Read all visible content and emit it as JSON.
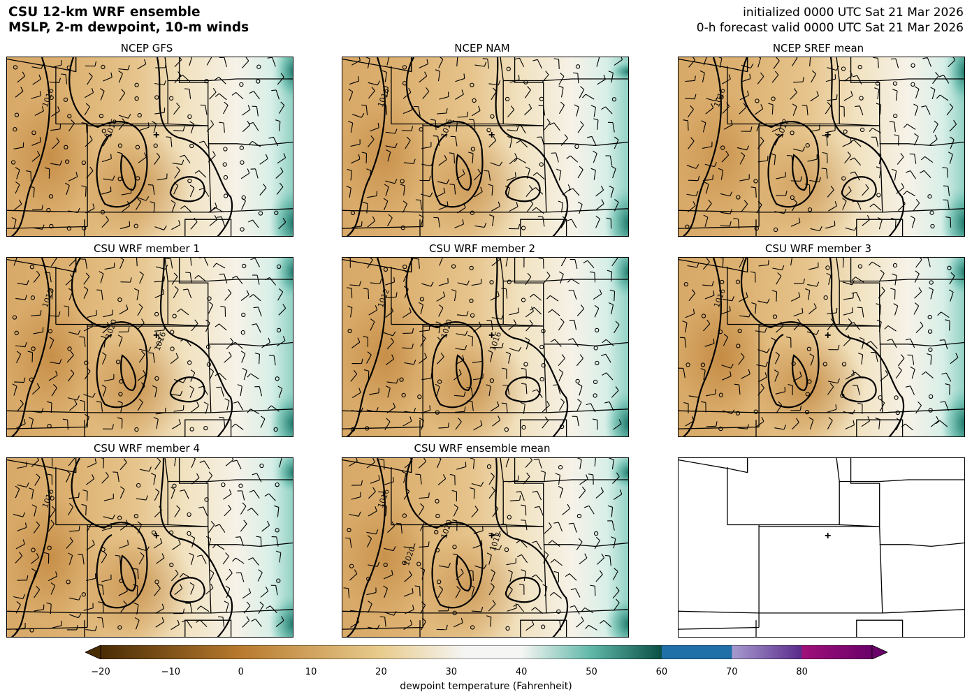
{
  "header": {
    "title_line1": "CSU 12-km WRF ensemble",
    "title_line2": "MSLP, 2-m dewpoint, 10-m winds",
    "init_line": "initialized 0000 UTC Sat 21 Mar 2026",
    "valid_line": "0-h forecast valid 0000 UTC Sat 21 Mar 2026"
  },
  "panels": [
    {
      "title": "NCEP GFS",
      "contour_labels": [
        "1016",
        "1016"
      ]
    },
    {
      "title": "NCEP NAM",
      "contour_labels": [
        "1016",
        "1016"
      ]
    },
    {
      "title": "NCEP SREF mean",
      "contour_labels": [
        "1016",
        "1012"
      ]
    },
    {
      "title": "CSU WRF member 1",
      "contour_labels": [
        "1012",
        "1020",
        "1016"
      ]
    },
    {
      "title": "CSU WRF member 2",
      "contour_labels": [
        "1012",
        "1020",
        "1016"
      ]
    },
    {
      "title": "CSU WRF member 3",
      "contour_labels": [
        "1016"
      ]
    },
    {
      "title": "CSU WRF member 4",
      "contour_labels": [
        "1016"
      ]
    },
    {
      "title": "CSU WRF ensemble mean",
      "contour_labels": [
        "1016",
        "1020",
        "1012",
        "1020"
      ]
    },
    {
      "title": "",
      "contour_labels": []
    }
  ],
  "colorbar": {
    "label": "dewpoint temperature (Fahrenheit)",
    "ticks": [
      "−20",
      "−10",
      "0",
      "10",
      "20",
      "30",
      "40",
      "50",
      "60",
      "70",
      "80"
    ],
    "colors": {
      "brown_dark": "#4a2c05",
      "brown": "#b87a2e",
      "tan": "#e8cc8e",
      "white": "#f5f5f3",
      "teal": "#5fb7a8",
      "teal_dark": "#0a4f45",
      "blue": "#1f6fa8",
      "lavender": "#a79bd0",
      "purple": "#5a2a8a",
      "magenta": "#a0107a"
    }
  },
  "map_marker": "plus-icon"
}
